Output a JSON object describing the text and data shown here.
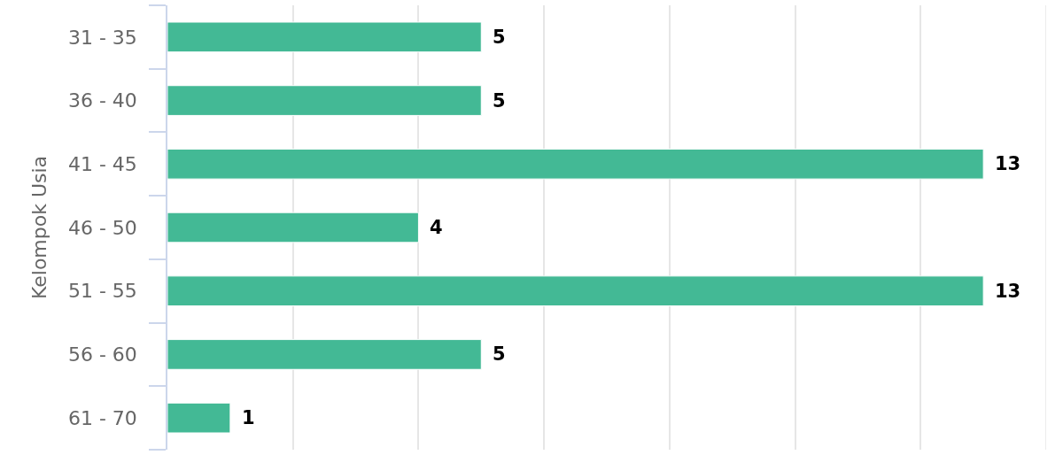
{
  "chart_data": {
    "type": "bar",
    "orientation": "horizontal",
    "ylabel": "Kelompok Usia",
    "categories": [
      "31 - 35",
      "36 - 40",
      "41 - 45",
      "46 - 50",
      "51 - 55",
      "56 - 60",
      "61 - 70"
    ],
    "values": [
      5,
      5,
      13,
      4,
      13,
      5,
      1
    ],
    "color": "#43b995",
    "xlim": [
      0,
      14
    ],
    "xticks": [
      {
        "value": 0,
        "label": null
      },
      {
        "value": 2,
        "label": null
      },
      {
        "value": 4,
        "label": null
      },
      {
        "value": 6,
        "label": null
      },
      {
        "value": 8,
        "label": null
      },
      {
        "value": 10,
        "label": null
      },
      {
        "value": 12,
        "label": null
      },
      {
        "value": 14,
        "label": null
      }
    ],
    "grid": "x",
    "data_labels": true,
    "tick_labels": "y"
  }
}
